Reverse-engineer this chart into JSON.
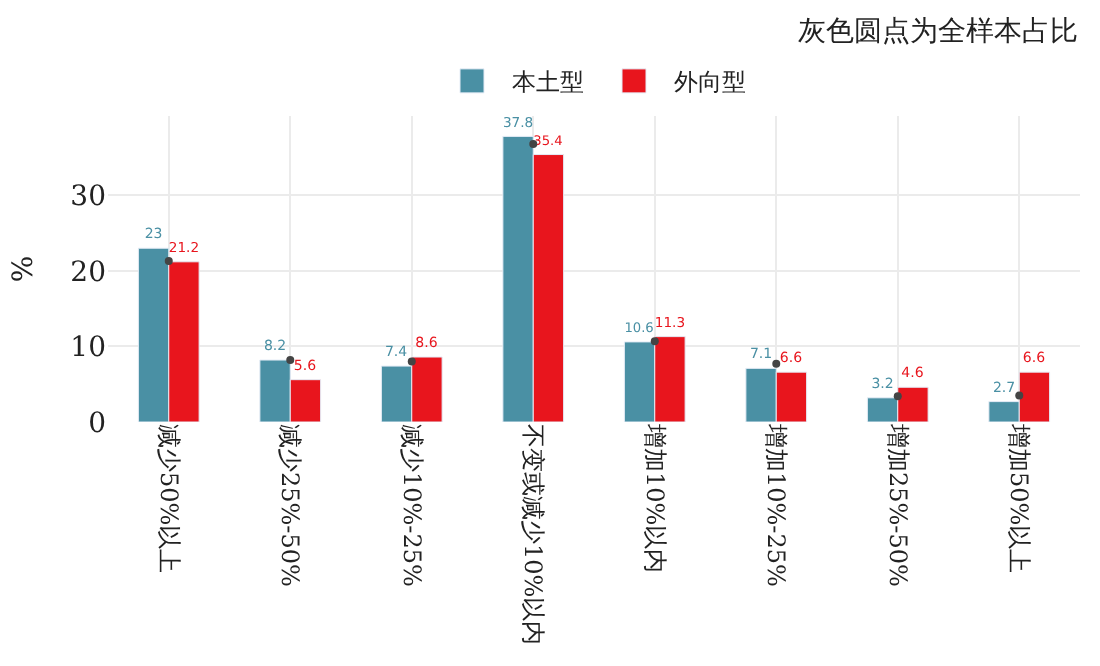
{
  "chart_data": {
    "type": "bar",
    "title": "灰色圆点为全样本占比",
    "ylabel": "%",
    "categories": [
      "减少50%以上",
      "减少25%-50%",
      "减少10%-25%",
      "不变或减少10%以内",
      "增加10%以内",
      "增加10%-25%",
      "增加25%-50%",
      "增加50%以上"
    ],
    "series": [
      {
        "name": "本土型",
        "color": "#4a90a4",
        "values": [
          23,
          8.2,
          7.4,
          37.8,
          10.6,
          7.1,
          3.2,
          2.7
        ],
        "value_labels": [
          "23",
          "8.2",
          "7.4",
          "37.8",
          "10.6",
          "7.1",
          "3.2",
          "2.7"
        ]
      },
      {
        "name": "外向型",
        "color": "#e8151d",
        "values": [
          21.2,
          5.6,
          8.6,
          35.4,
          11.3,
          6.6,
          4.6,
          6.6
        ],
        "value_labels": [
          "21.2",
          "5.6",
          "8.6",
          "35.4",
          "11.3",
          "6.6",
          "4.6",
          "6.6"
        ]
      },
      {
        "type": "scatter",
        "color": "#444444",
        "x": [
          "减少50%以上",
          "减少25%-50%",
          "减少10%-25%",
          "不变或减少10%以内",
          "增加10%以内",
          "增加10%-25%",
          "增加25%-50%",
          "增加50%以上"
        ],
        "values": [
          21.3,
          8.2,
          8.0,
          36.8,
          10.7,
          7.7,
          3.4,
          3.5
        ]
      }
    ],
    "ylim": [
      0,
      40.5
    ],
    "yticks": [
      0,
      10,
      20,
      30
    ],
    "grid": true,
    "legend": "top"
  }
}
